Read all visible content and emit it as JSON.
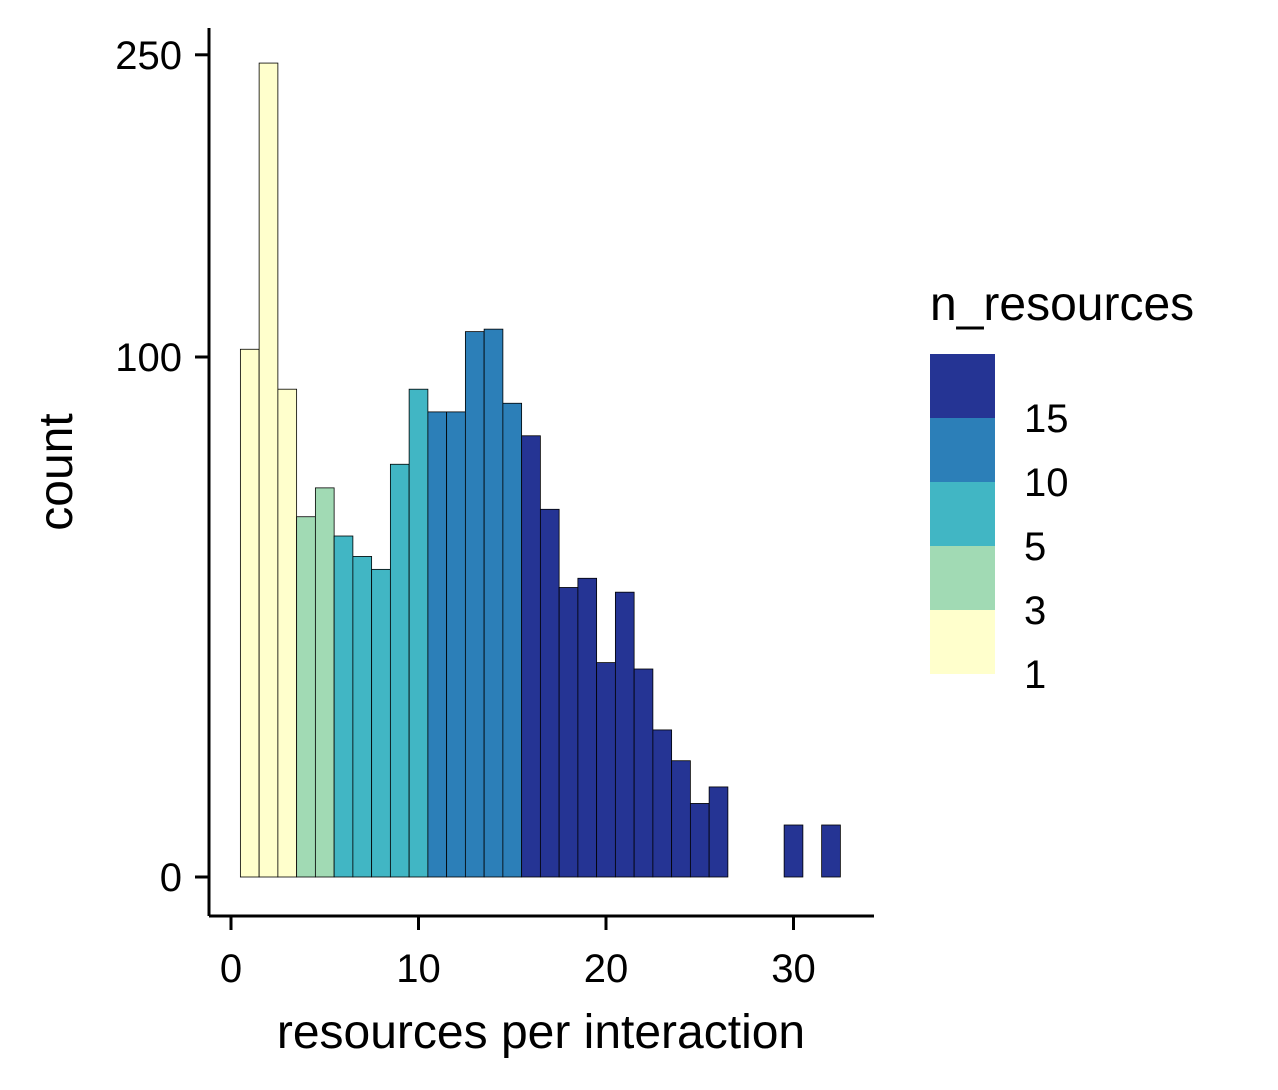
{
  "chart_data": {
    "type": "bar",
    "subtype": "histogram",
    "xlabel": "resources per interaction",
    "ylabel": "count",
    "y_scale": "sqrt",
    "xlim": [
      -0.5,
      33.5
    ],
    "ylim": [
      0,
      250
    ],
    "x_ticks": [
      0,
      10,
      20,
      30
    ],
    "y_ticks": [
      0,
      100,
      250
    ],
    "bin_width": 1,
    "bins": [
      {
        "center": 1,
        "count": 103,
        "group": "1"
      },
      {
        "center": 2,
        "count": 245,
        "group": "1"
      },
      {
        "center": 3,
        "count": 88,
        "group": "1"
      },
      {
        "center": 4,
        "count": 48,
        "group": "3"
      },
      {
        "center": 5,
        "count": 56,
        "group": "3"
      },
      {
        "center": 6,
        "count": 43,
        "group": "5"
      },
      {
        "center": 7,
        "count": 38,
        "group": "5"
      },
      {
        "center": 8,
        "count": 35,
        "group": "5"
      },
      {
        "center": 9,
        "count": 63,
        "group": "5"
      },
      {
        "center": 10,
        "count": 88,
        "group": "5"
      },
      {
        "center": 11,
        "count": 80,
        "group": "10"
      },
      {
        "center": 12,
        "count": 80,
        "group": "10"
      },
      {
        "center": 13,
        "count": 110,
        "group": "10"
      },
      {
        "center": 14,
        "count": 111,
        "group": "10"
      },
      {
        "center": 15,
        "count": 83,
        "group": "10"
      },
      {
        "center": 16,
        "count": 72,
        "group": "15"
      },
      {
        "center": 17,
        "count": 50,
        "group": "15"
      },
      {
        "center": 18,
        "count": 31,
        "group": "15"
      },
      {
        "center": 19,
        "count": 33,
        "group": "15"
      },
      {
        "center": 20,
        "count": 17,
        "group": "15"
      },
      {
        "center": 21,
        "count": 30,
        "group": "15"
      },
      {
        "center": 22,
        "count": 16,
        "group": "15"
      },
      {
        "center": 23,
        "count": 8,
        "group": "15"
      },
      {
        "center": 24,
        "count": 5,
        "group": "15"
      },
      {
        "center": 25,
        "count": 2,
        "group": "15"
      },
      {
        "center": 26,
        "count": 3,
        "group": "15"
      },
      {
        "center": 27,
        "count": 0,
        "group": "15"
      },
      {
        "center": 28,
        "count": 0,
        "group": "15"
      },
      {
        "center": 29,
        "count": 0,
        "group": "15"
      },
      {
        "center": 30,
        "count": 1,
        "group": "15"
      },
      {
        "center": 31,
        "count": 0,
        "group": "15"
      },
      {
        "center": 32,
        "count": 1,
        "group": "15"
      }
    ],
    "legend": {
      "title": "n_resources",
      "position": "right",
      "colors": [
        "#253494",
        "#2c7fb8",
        "#41b6c4",
        "#a1dab4",
        "#ffffcc"
      ],
      "labels": [
        "15",
        "10",
        "5",
        "3",
        "1"
      ]
    },
    "group_colors": {
      "1": "#ffffcc",
      "3": "#a1dab4",
      "5": "#41b6c4",
      "10": "#2c7fb8",
      "15": "#253494"
    }
  }
}
